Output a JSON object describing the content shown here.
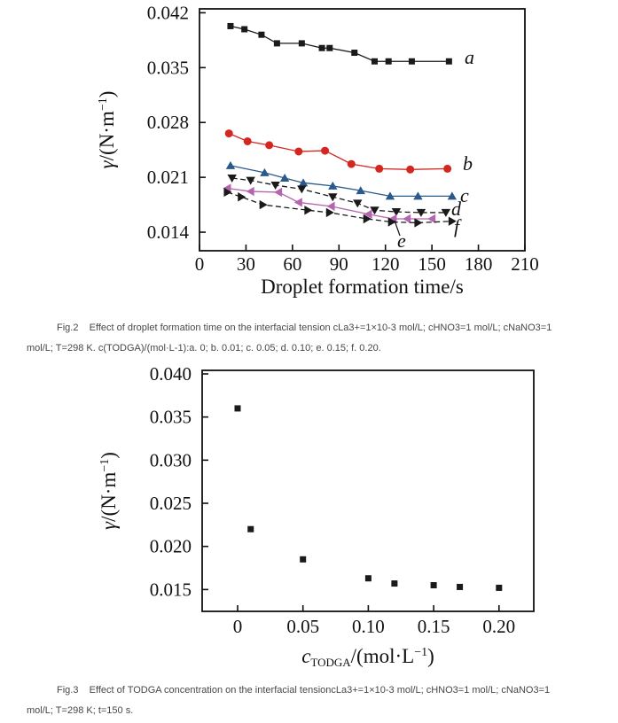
{
  "page": {
    "background": "#ffffff",
    "text_color": "#474747",
    "axis_color": "#111111"
  },
  "fig2": {
    "caption": "Fig.2    Effect of droplet formation time on the interfacial tension cLa3+=1×10-3 mol/L; cHNO3=1 mol/L; cNaNO3=1\nmol/L; T=298 K. c(TODGA)/(mol·L-1):a. 0; b. 0.01; c. 0.05; d. 0.10; e. 0.15; f. 0.20."
  },
  "fig3": {
    "caption": "Fig.3    Effect of TODGA concentration on the interfacial tensioncLa3+=1×10-3 mol/L; cHNO3=1 mol/L; cNaNO3=1\nmol/L; T=298 K; t=150 s."
  },
  "chart_data": [
    {
      "type": "line",
      "title": "",
      "xlabel": "Droplet formation time/s",
      "ylabel": "γ/(N·m−1)",
      "xlabel_parts": [
        {
          "text": "Droplet formation time/s",
          "style": "normal"
        }
      ],
      "ylabel_parts": [
        {
          "text": "γ",
          "style": "italic"
        },
        {
          "text": "/(N·m",
          "style": "normal"
        },
        {
          "text": "−1",
          "style": "sup"
        },
        {
          "text": ")",
          "style": "normal"
        }
      ],
      "xlim": [
        0,
        210
      ],
      "ylim": [
        0.01163,
        0.0425
      ],
      "xticks": [
        "0",
        "30",
        "60",
        "90",
        "120",
        "150",
        "180",
        "210"
      ],
      "xtick_values": [
        0,
        30,
        60,
        90,
        120,
        150,
        180,
        210
      ],
      "yticks": [
        "0.014",
        "0.021",
        "0.028",
        "0.035",
        "0.042"
      ],
      "ytick_values": [
        0.014,
        0.021,
        0.028,
        0.035,
        0.042
      ],
      "grid": false,
      "legend_position": "right-inline-labels",
      "series": [
        {
          "name": "a",
          "marker": "square",
          "color": "#1a1a1a",
          "dash": false,
          "x": [
            20,
            29,
            40,
            50,
            66,
            79,
            84,
            100,
            113,
            122,
            137,
            161
          ],
          "y": [
            0.0403,
            0.0399,
            0.0392,
            0.0381,
            0.0381,
            0.0375,
            0.0375,
            0.0369,
            0.0358,
            0.0358,
            0.0358,
            0.0358
          ]
        },
        {
          "name": "b",
          "marker": "circle",
          "color": "#d42720",
          "dash": false,
          "x": [
            19,
            31,
            45,
            64,
            81,
            98,
            116,
            136,
            160
          ],
          "y": [
            0.0266,
            0.0256,
            0.0251,
            0.0243,
            0.0244,
            0.0227,
            0.0221,
            0.022,
            0.0221
          ]
        },
        {
          "name": "c",
          "marker": "triangle-up",
          "color": "#2a5a8c",
          "dash": false,
          "x": [
            20,
            42,
            55,
            67,
            86,
            104,
            123,
            141,
            163
          ],
          "y": [
            0.0225,
            0.0216,
            0.0209,
            0.0203,
            0.0199,
            0.0193,
            0.0186,
            0.0186,
            0.0186
          ]
        },
        {
          "name": "d",
          "marker": "triangle-down",
          "color": "#1a1a1a",
          "dash": true,
          "x": [
            21,
            33,
            49,
            66,
            86,
            102,
            113,
            127,
            143,
            159
          ],
          "y": [
            0.0209,
            0.0206,
            0.02,
            0.0195,
            0.0185,
            0.0177,
            0.0168,
            0.0166,
            0.0165,
            0.0165
          ]
        },
        {
          "name": "e",
          "marker": "triangle-left",
          "color": "#b565ae",
          "dash": false,
          "x": [
            18,
            33,
            51,
            64,
            85,
            109,
            125,
            134,
            150
          ],
          "y": [
            0.0196,
            0.0192,
            0.0191,
            0.0178,
            0.0173,
            0.0163,
            0.0157,
            0.0157,
            0.0157
          ]
        },
        {
          "name": "f",
          "marker": "triangle-right",
          "color": "#1a1a1a",
          "dash": true,
          "x": [
            18,
            27,
            41,
            70,
            84,
            108,
            124,
            141,
            163
          ],
          "y": [
            0.0191,
            0.0185,
            0.0175,
            0.0168,
            0.0165,
            0.0157,
            0.0153,
            0.0152,
            0.0154
          ]
        }
      ]
    },
    {
      "type": "scatter",
      "title": "",
      "xlabel": "cTODGA/(mol·L−1)",
      "ylabel": "γ/(N·m−1)",
      "xlabel_parts": [
        {
          "text": "c",
          "style": "italic"
        },
        {
          "text": "TODGA",
          "style": "sub"
        },
        {
          "text": "/(mol·L",
          "style": "normal"
        },
        {
          "text": "−1",
          "style": "sup"
        },
        {
          "text": ")",
          "style": "normal"
        }
      ],
      "ylabel_parts": [
        {
          "text": "γ",
          "style": "italic"
        },
        {
          "text": "/(N·m",
          "style": "normal"
        },
        {
          "text": "−1",
          "style": "sup"
        },
        {
          "text": ")",
          "style": "normal"
        }
      ],
      "xlim": [
        -0.02713,
        0.22659
      ],
      "ylim": [
        0.01247,
        0.04041
      ],
      "xticks": [
        "0",
        "0.05",
        "0.10",
        "0.15",
        "0.20"
      ],
      "xtick_values": [
        0,
        0.05,
        0.1,
        0.15,
        0.2
      ],
      "yticks": [
        "0.015",
        "0.020",
        "0.025",
        "0.030",
        "0.035",
        "0.040"
      ],
      "ytick_values": [
        0.015,
        0.02,
        0.025,
        0.03,
        0.035,
        0.04
      ],
      "grid": false,
      "series": [
        {
          "name": "",
          "marker": "square",
          "color": "#1a1a1a",
          "line": false,
          "x": [
            0,
            0.01,
            0.05,
            0.1,
            0.12,
            0.15,
            0.17,
            0.2
          ],
          "y": [
            0.036,
            0.022,
            0.0185,
            0.0163,
            0.0157,
            0.0155,
            0.0153,
            0.0152
          ]
        }
      ]
    }
  ]
}
